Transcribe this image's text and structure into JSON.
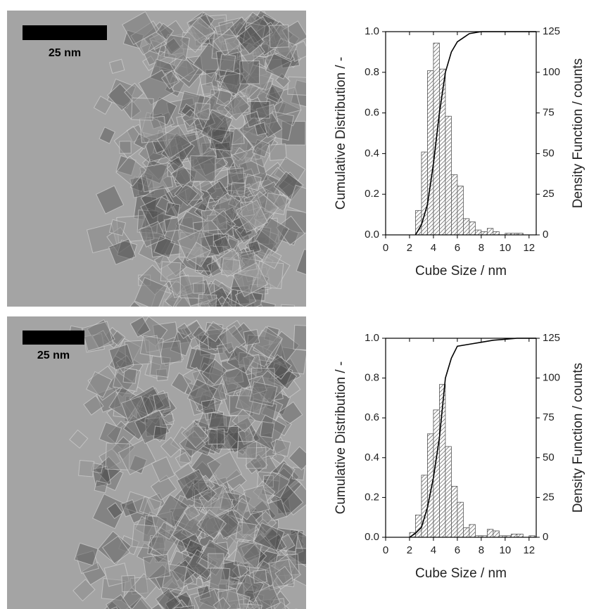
{
  "images": [
    {
      "scale_bar": "25 nm"
    },
    {
      "scale_bar": "25 nm"
    }
  ],
  "chart_data": [
    {
      "type": "histogram",
      "x_label": "Cube Size / nm",
      "y_label": "Cumulative Distribution / -",
      "y2_label": "Density Function / counts",
      "xlim": [
        0,
        12.6
      ],
      "xticks": [
        0,
        2,
        4,
        6,
        8,
        10,
        12
      ],
      "ylim": [
        0,
        1
      ],
      "yticks": [
        {
          "value": 0,
          "label": "0.0"
        },
        0.2,
        0.4,
        0.6,
        0.8,
        {
          "value": 1,
          "label": "1.0"
        }
      ],
      "y2lim": [
        0,
        125
      ],
      "y2ticks": [
        0,
        25,
        50,
        75,
        100,
        125
      ],
      "series": [
        {
          "type": "histogram",
          "axis": "y2",
          "color": "#555555",
          "bins": [
            2.5,
            3,
            3.5,
            4,
            4.5,
            5,
            5.5,
            6,
            6.5,
            7,
            7.5,
            8,
            8.5,
            9,
            9.5,
            10,
            10.5,
            11,
            11.5,
            12
          ],
          "values": [
            15,
            51,
            101,
            118,
            102,
            73,
            37,
            30,
            10,
            8,
            3,
            2,
            4,
            2,
            0,
            1,
            1,
            1,
            0
          ]
        },
        {
          "type": "line",
          "color": "#000000",
          "x": [
            2.5,
            3,
            3.5,
            4,
            4.5,
            5,
            5.5,
            6,
            6.5,
            7,
            8,
            12.6
          ],
          "values": [
            0,
            0.05,
            0.15,
            0.35,
            0.6,
            0.8,
            0.9,
            0.95,
            0.97,
            0.99,
            1,
            1
          ]
        }
      ]
    },
    {
      "type": "histogram",
      "x_label": "Cube Size / nm",
      "y_label": "Cumulative Distribution / -",
      "y2_label": "Density Function / counts",
      "xlim": [
        0,
        12.6
      ],
      "xticks": [
        0,
        2,
        4,
        6,
        8,
        10,
        12
      ],
      "ylim": [
        0,
        1
      ],
      "yticks": [
        {
          "value": 0,
          "label": "0.0"
        },
        0.2,
        0.4,
        0.6,
        0.8,
        {
          "value": 1,
          "label": "1.0"
        }
      ],
      "y2lim": [
        0,
        125
      ],
      "y2ticks": [
        0,
        25,
        50,
        75,
        100,
        125
      ],
      "series": [
        {
          "type": "histogram",
          "axis": "y2",
          "color": "#555555",
          "bins": [
            2,
            2.5,
            3,
            3.5,
            4,
            4.5,
            5,
            5.5,
            6,
            6.5,
            7,
            7.5,
            8,
            8.5,
            9,
            9.5,
            10,
            10.5,
            11,
            11.5,
            12,
            12.5
          ],
          "values": [
            3,
            14,
            39,
            65,
            80,
            96,
            57,
            32,
            22,
            6,
            8,
            1,
            1,
            5,
            4,
            1,
            1,
            2,
            2,
            0,
            1
          ]
        },
        {
          "type": "line",
          "color": "#000000",
          "x": [
            2,
            2.5,
            3,
            3.5,
            4,
            4.5,
            5,
            5.5,
            6,
            7,
            8,
            9,
            10,
            11,
            12.6
          ],
          "values": [
            0,
            0.02,
            0.05,
            0.15,
            0.3,
            0.5,
            0.8,
            0.9,
            0.96,
            0.97,
            0.98,
            0.99,
            0.995,
            1,
            1
          ]
        }
      ]
    }
  ]
}
